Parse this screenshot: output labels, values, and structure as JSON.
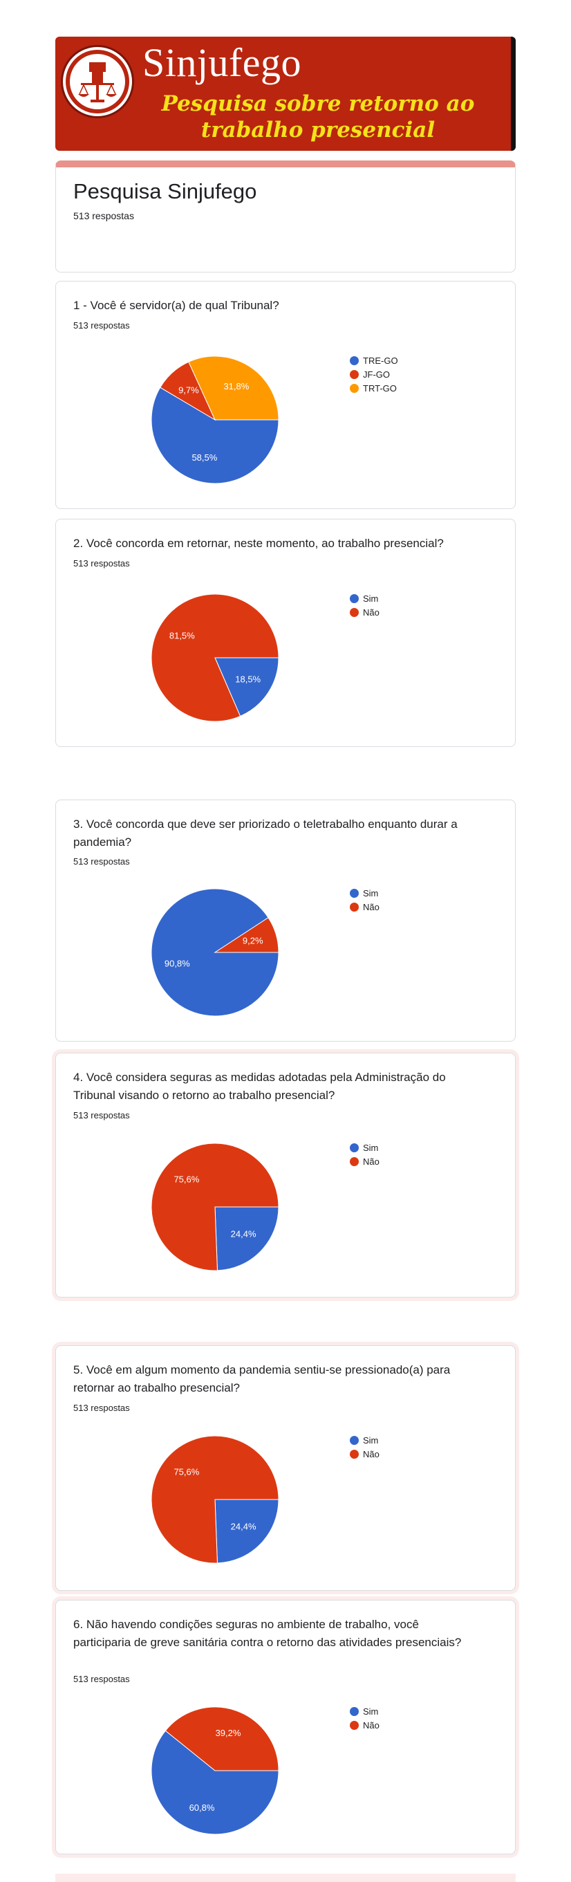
{
  "banner": {
    "title": "Sinjufego",
    "subtitle_line1": "Pesquisa sobre retorno ao",
    "subtitle_line2": "trabalho presencial",
    "logo_icon": "fist-scales-icon",
    "colors": {
      "background": "#b9250f",
      "subtitle": "#f4e21a"
    }
  },
  "form": {
    "title": "Pesquisa Sinjufego",
    "responses": "513 respostas"
  },
  "colors": {
    "blue": "#3366cc",
    "red": "#dc3912",
    "orange": "#ff9900"
  },
  "questions": [
    {
      "title": "1 - Você é servidor(a) de qual Tribunal?",
      "responses": "513 respostas",
      "legend": [
        "TRE-GO",
        "JF-GO",
        "TRT-GO"
      ],
      "labels": [
        "58,5%",
        "9,7%",
        "31,8%"
      ]
    },
    {
      "title": "2. Você concorda em retornar, neste momento, ao trabalho presencial?",
      "responses": "513 respostas",
      "legend": [
        "Sim",
        "Não"
      ],
      "labels": [
        "18,5%",
        "81,5%"
      ]
    },
    {
      "title": "3. Você concorda que deve ser priorizado o teletrabalho enquanto durar a pandemia?",
      "responses": "513 respostas",
      "legend": [
        "Sim",
        "Não"
      ],
      "labels": [
        "90,8%",
        "9,2%"
      ]
    },
    {
      "title": "4. Você considera seguras as medidas adotadas pela Administração do Tribunal visando o retorno ao trabalho presencial?",
      "responses": "513 respostas",
      "legend": [
        "Sim",
        "Não"
      ],
      "labels": [
        "24,4%",
        "75,6%"
      ]
    },
    {
      "title": "5. Você em algum momento da pandemia sentiu-se pressionado(a) para retornar ao trabalho presencial?",
      "responses": "513 respostas",
      "legend": [
        "Sim",
        "Não"
      ],
      "labels": [
        "24,4%",
        "75,6%"
      ]
    },
    {
      "title": "6. Não havendo condições seguras no ambiente de trabalho, você participaria de greve sanitária contra o retorno das atividades presenciais?",
      "responses": "513 respostas",
      "legend": [
        "Sim",
        "Não"
      ],
      "labels": [
        "60,8%",
        "39,2%"
      ]
    }
  ],
  "chart_data": [
    {
      "type": "pie",
      "categories": [
        "TRE-GO",
        "JF-GO",
        "TRT-GO"
      ],
      "values": [
        58.5,
        9.7,
        31.8
      ],
      "colors": [
        "#3366cc",
        "#dc3912",
        "#ff9900"
      ],
      "legend": "right"
    },
    {
      "type": "pie",
      "categories": [
        "Sim",
        "Não"
      ],
      "values": [
        18.5,
        81.5
      ],
      "colors": [
        "#3366cc",
        "#dc3912"
      ],
      "legend": "right"
    },
    {
      "type": "pie",
      "categories": [
        "Sim",
        "Não"
      ],
      "values": [
        90.8,
        9.2
      ],
      "colors": [
        "#3366cc",
        "#dc3912"
      ],
      "legend": "right"
    },
    {
      "type": "pie",
      "categories": [
        "Sim",
        "Não"
      ],
      "values": [
        24.4,
        75.6
      ],
      "colors": [
        "#3366cc",
        "#dc3912"
      ],
      "legend": "right"
    },
    {
      "type": "pie",
      "categories": [
        "Sim",
        "Não"
      ],
      "values": [
        24.4,
        75.6
      ],
      "colors": [
        "#3366cc",
        "#dc3912"
      ],
      "legend": "right"
    },
    {
      "type": "pie",
      "categories": [
        "Sim",
        "Não"
      ],
      "values": [
        60.8,
        39.2
      ],
      "colors": [
        "#3366cc",
        "#dc3912"
      ],
      "legend": "right"
    }
  ]
}
